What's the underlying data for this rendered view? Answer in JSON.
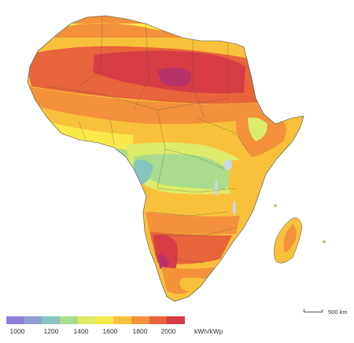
{
  "legend": {
    "ticks": [
      "1000",
      "1200",
      "1400",
      "1600",
      "1800",
      "2000"
    ],
    "unit": "kWh/kWp",
    "colors": [
      "#8b7fd6",
      "#8f9fd4",
      "#86c4c0",
      "#a9dc8c",
      "#dcec6a",
      "#fbe94a",
      "#f9c13b",
      "#f3923a",
      "#e8643a",
      "#d63d45"
    ]
  },
  "scale": {
    "label": "500 km"
  },
  "map": {
    "region": "Africa",
    "colors": {
      "very_high": "#d63d45",
      "high": "#e8643a",
      "medium_high": "#f3923a",
      "medium": "#f9c13b",
      "medium_low": "#fbe94a",
      "low": "#dcec6a",
      "lower": "#a9dc8c",
      "lowest": "#86c4c0",
      "peak": "#b8336a",
      "water": "#c8d8ea",
      "border": "#4a4a4a"
    }
  }
}
